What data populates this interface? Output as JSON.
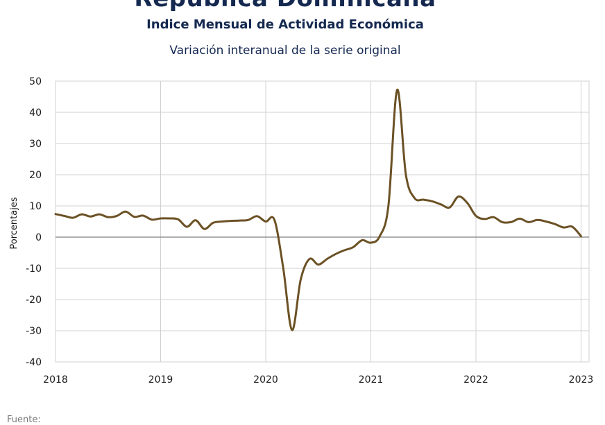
{
  "header": {
    "title": "República Dominicana",
    "subtitle": "Indice Mensual de  Actividad Económica",
    "subtitle2": "Variación interanual de la serie original"
  },
  "footer": {
    "source": "Fuente:"
  },
  "colors": {
    "series": "#6b5125",
    "negative_tick": "#c00000",
    "zero_line": "#7f7f7f",
    "grid": "#d0d0d0",
    "title": "#142850"
  },
  "chart_data": {
    "type": "line",
    "title": "Indice Mensual de  Actividad Económica",
    "subtitle": "Variación interanual de la serie original",
    "ylabel": "Porcentajes",
    "xlabel": "",
    "xlim": [
      2018,
      2023.1
    ],
    "ylim": [
      -40,
      50
    ],
    "x_ticks": [
      "2018",
      "2019",
      "2020",
      "2021",
      "2022",
      "2023"
    ],
    "y_ticks": [
      50,
      40,
      30,
      20,
      10,
      0,
      -10,
      -20,
      -30,
      -40
    ],
    "grid": true,
    "legend": "none",
    "series": [
      {
        "points": [
          {
            "x": "2018-01",
            "y": 7.4
          },
          {
            "x": "2018-02",
            "y": 6.8
          },
          {
            "x": "2018-03",
            "y": 6.2
          },
          {
            "x": "2018-04",
            "y": 7.3
          },
          {
            "x": "2018-05",
            "y": 6.6
          },
          {
            "x": "2018-06",
            "y": 7.3
          },
          {
            "x": "2018-07",
            "y": 6.4
          },
          {
            "x": "2018-08",
            "y": 6.8
          },
          {
            "x": "2018-09",
            "y": 8.2
          },
          {
            "x": "2018-10",
            "y": 6.5
          },
          {
            "x": "2018-11",
            "y": 6.9
          },
          {
            "x": "2018-12",
            "y": 5.6
          },
          {
            "x": "2019-01",
            "y": 6.0
          },
          {
            "x": "2019-02",
            "y": 6.0
          },
          {
            "x": "2019-03",
            "y": 5.7
          },
          {
            "x": "2019-04",
            "y": 3.3
          },
          {
            "x": "2019-05",
            "y": 5.4
          },
          {
            "x": "2019-06",
            "y": 2.6
          },
          {
            "x": "2019-07",
            "y": 4.6
          },
          {
            "x": "2019-08",
            "y": 5.0
          },
          {
            "x": "2019-09",
            "y": 5.2
          },
          {
            "x": "2019-10",
            "y": 5.3
          },
          {
            "x": "2019-11",
            "y": 5.5
          },
          {
            "x": "2019-12",
            "y": 6.7
          },
          {
            "x": "2020-01",
            "y": 5.0
          },
          {
            "x": "2020-02",
            "y": 5.5
          },
          {
            "x": "2020-03",
            "y": -10.0
          },
          {
            "x": "2020-04",
            "y": -29.8
          },
          {
            "x": "2020-05",
            "y": -13.5
          },
          {
            "x": "2020-06",
            "y": -7.0
          },
          {
            "x": "2020-07",
            "y": -8.8
          },
          {
            "x": "2020-08",
            "y": -7.0
          },
          {
            "x": "2020-09",
            "y": -5.4
          },
          {
            "x": "2020-10",
            "y": -4.2
          },
          {
            "x": "2020-11",
            "y": -3.2
          },
          {
            "x": "2020-12",
            "y": -1.0
          },
          {
            "x": "2021-01",
            "y": -1.8
          },
          {
            "x": "2021-02",
            "y": 0.2
          },
          {
            "x": "2021-03",
            "y": 10.0
          },
          {
            "x": "2021-04",
            "y": 47.2
          },
          {
            "x": "2021-05",
            "y": 20.0
          },
          {
            "x": "2021-06",
            "y": 12.5
          },
          {
            "x": "2021-07",
            "y": 12.0
          },
          {
            "x": "2021-08",
            "y": 11.5
          },
          {
            "x": "2021-09",
            "y": 10.5
          },
          {
            "x": "2021-10",
            "y": 9.5
          },
          {
            "x": "2021-11",
            "y": 13.0
          },
          {
            "x": "2021-12",
            "y": 11.0
          },
          {
            "x": "2022-01",
            "y": 6.8
          },
          {
            "x": "2022-02",
            "y": 5.8
          },
          {
            "x": "2022-03",
            "y": 6.4
          },
          {
            "x": "2022-04",
            "y": 4.8
          },
          {
            "x": "2022-05",
            "y": 4.8
          },
          {
            "x": "2022-06",
            "y": 5.9
          },
          {
            "x": "2022-07",
            "y": 4.8
          },
          {
            "x": "2022-08",
            "y": 5.5
          },
          {
            "x": "2022-09",
            "y": 5.0
          },
          {
            "x": "2022-10",
            "y": 4.2
          },
          {
            "x": "2022-11",
            "y": 3.1
          },
          {
            "x": "2022-12",
            "y": 3.3
          },
          {
            "x": "2023-01",
            "y": 0.3
          }
        ]
      }
    ]
  }
}
